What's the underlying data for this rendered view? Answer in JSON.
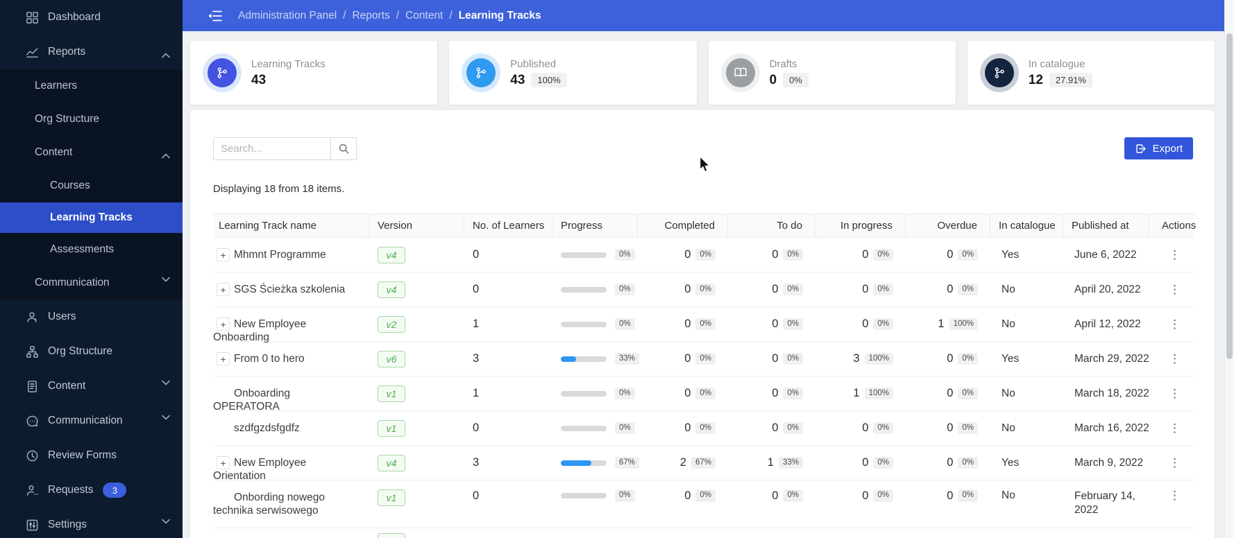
{
  "topbar": {
    "breadcrumb": [
      "Administration Panel",
      "Reports",
      "Content",
      "Learning Tracks"
    ]
  },
  "sidebar": {
    "dashboard": "Dashboard",
    "reports": "Reports",
    "learners": "Learners",
    "org_structure_sub": "Org Structure",
    "content_sub": "Content",
    "courses": "Courses",
    "learning_tracks": "Learning Tracks",
    "assessments": "Assessments",
    "communication_sub": "Communication",
    "users": "Users",
    "org_structure": "Org Structure",
    "content": "Content",
    "communication": "Communication",
    "review_forms": "Review Forms",
    "requests": "Requests",
    "requests_badge": "3",
    "settings": "Settings"
  },
  "cards": [
    {
      "label": "Learning Tracks",
      "value": "43",
      "pct": null,
      "icon": "branch-icon",
      "ring": "#dce7fb",
      "disc": "#4353e2"
    },
    {
      "label": "Published",
      "value": "43",
      "pct": "100%",
      "icon": "branch-icon",
      "ring": "#d4e9fd",
      "disc": "#2e9af0"
    },
    {
      "label": "Drafts",
      "value": "0",
      "pct": "0%",
      "icon": "book-icon",
      "ring": "#efefef",
      "disc": "#9a9fa4"
    },
    {
      "label": "In catalogue",
      "value": "12",
      "pct": "27.91%",
      "icon": "branch-icon",
      "ring": "#c9cfd8",
      "disc": "#13243e"
    }
  ],
  "toolbar": {
    "search_placeholder": "Search...",
    "export_label": "Export"
  },
  "table": {
    "summary": "Displaying 18 from 18 items.",
    "columns": [
      "Learning Track name",
      "Version",
      "No. of Learners",
      "Progress",
      "Completed",
      "To do",
      "In progress",
      "Overdue",
      "In catalogue",
      "Published at",
      "Actions"
    ],
    "rows": [
      {
        "expander": true,
        "name": "Mhmnt Programme",
        "version": "v4",
        "learners": "0",
        "progress_pct": 0,
        "progress_label": "0%",
        "completed": {
          "value": "0",
          "pct": "0%"
        },
        "todo": {
          "value": "0",
          "pct": "0%"
        },
        "in_progress": {
          "value": "0",
          "pct": "0%"
        },
        "overdue": {
          "value": "0",
          "pct": "0%"
        },
        "in_catalogue": "Yes",
        "published_at": "June 6, 2022"
      },
      {
        "expander": true,
        "name": "SGS Ścieżka szkolenia",
        "version": "v4",
        "learners": "0",
        "progress_pct": 0,
        "progress_label": "0%",
        "completed": {
          "value": "0",
          "pct": "0%"
        },
        "todo": {
          "value": "0",
          "pct": "0%"
        },
        "in_progress": {
          "value": "0",
          "pct": "0%"
        },
        "overdue": {
          "value": "0",
          "pct": "0%"
        },
        "in_catalogue": "No",
        "published_at": "April 20, 2022"
      },
      {
        "expander": true,
        "name": "New Employee Onboarding",
        "version": "v2",
        "learners": "1",
        "progress_pct": 0,
        "progress_label": "0%",
        "completed": {
          "value": "0",
          "pct": "0%"
        },
        "todo": {
          "value": "0",
          "pct": "0%"
        },
        "in_progress": {
          "value": "0",
          "pct": "0%"
        },
        "overdue": {
          "value": "1",
          "pct": "100%"
        },
        "in_catalogue": "No",
        "published_at": "April 12, 2022"
      },
      {
        "expander": true,
        "name": "From 0 to hero",
        "version": "v6",
        "learners": "3",
        "progress_pct": 33,
        "progress_label": "33%",
        "completed": {
          "value": "0",
          "pct": "0%"
        },
        "todo": {
          "value": "0",
          "pct": "0%"
        },
        "in_progress": {
          "value": "3",
          "pct": "100%"
        },
        "overdue": {
          "value": "0",
          "pct": "0%"
        },
        "in_catalogue": "Yes",
        "published_at": "March 29, 2022"
      },
      {
        "expander": false,
        "name": "Onboarding OPERATORA",
        "version": "v1",
        "learners": "1",
        "progress_pct": 0,
        "progress_label": "0%",
        "completed": {
          "value": "0",
          "pct": "0%"
        },
        "todo": {
          "value": "0",
          "pct": "0%"
        },
        "in_progress": {
          "value": "1",
          "pct": "100%"
        },
        "overdue": {
          "value": "0",
          "pct": "0%"
        },
        "in_catalogue": "No",
        "published_at": "March 18, 2022"
      },
      {
        "expander": false,
        "name": "szdfgzdsfgdfz",
        "version": "v1",
        "learners": "0",
        "progress_pct": 0,
        "progress_label": "0%",
        "completed": {
          "value": "0",
          "pct": "0%"
        },
        "todo": {
          "value": "0",
          "pct": "0%"
        },
        "in_progress": {
          "value": "0",
          "pct": "0%"
        },
        "overdue": {
          "value": "0",
          "pct": "0%"
        },
        "in_catalogue": "No",
        "published_at": "March 16, 2022"
      },
      {
        "expander": true,
        "name": "New Employee Orientation",
        "version": "v4",
        "learners": "3",
        "progress_pct": 67,
        "progress_label": "67%",
        "completed": {
          "value": "2",
          "pct": "67%"
        },
        "todo": {
          "value": "1",
          "pct": "33%"
        },
        "in_progress": {
          "value": "0",
          "pct": "0%"
        },
        "overdue": {
          "value": "0",
          "pct": "0%"
        },
        "in_catalogue": "Yes",
        "published_at": "March 9, 2022"
      },
      {
        "expander": false,
        "name": "Onbording nowego technika serwisowego",
        "version": "v1",
        "learners": "0",
        "progress_pct": 0,
        "progress_label": "0%",
        "completed": {
          "value": "0",
          "pct": "0%"
        },
        "todo": {
          "value": "0",
          "pct": "0%"
        },
        "in_progress": {
          "value": "0",
          "pct": "0%"
        },
        "overdue": {
          "value": "0",
          "pct": "0%"
        },
        "in_catalogue": "No",
        "published_at": "February 14, 2022",
        "tall": true
      },
      {
        "partial": true,
        "name": "",
        "version": ""
      }
    ]
  },
  "icons": {
    "kebab": "⋮",
    "expander": "+"
  }
}
